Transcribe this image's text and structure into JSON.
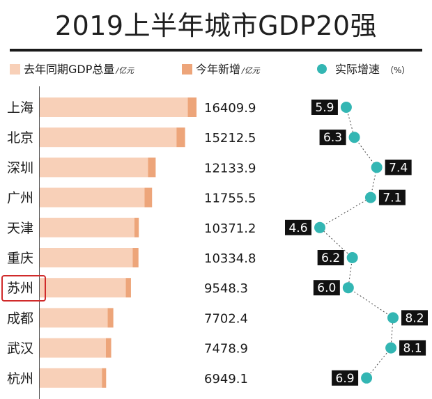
{
  "title": "2019上半年城市GDP20强",
  "legend": {
    "base": {
      "label": "去年同期GDP总量",
      "unit": "/亿元"
    },
    "increase": {
      "label": "今年新增",
      "unit": "/亿元"
    },
    "growth": {
      "label": "实际增速",
      "unit": "（%）"
    }
  },
  "colors": {
    "base": "#f8d0b8",
    "increase": "#eda57a",
    "growth_dot": "#33b6b3",
    "rate_box": "#111111",
    "highlight": "#d02a2a"
  },
  "highlighted_city": "苏州",
  "chart_data": {
    "type": "bar",
    "categories": [
      "上海",
      "北京",
      "深圳",
      "广州",
      "天津",
      "重庆",
      "苏州",
      "成都",
      "武汉",
      "杭州"
    ],
    "series": [
      {
        "name": "去年同期GDP总量",
        "values": [
          15498,
          14313,
          11336,
          10971,
          9915,
          9733,
          9008,
          7112,
          6920,
          6508
        ]
      },
      {
        "name": "今年新增",
        "values": [
          911.9,
          899.5,
          797.9,
          784.5,
          456.2,
          601.8,
          540.3,
          590.4,
          558.9,
          441.1
        ]
      },
      {
        "name": "实际增速",
        "values": [
          5.9,
          6.3,
          7.4,
          7.1,
          4.6,
          6.2,
          6.0,
          8.2,
          8.1,
          6.9
        ]
      }
    ],
    "totals_labels": [
      "16409.9",
      "15212.5",
      "12133.9",
      "11755.5",
      "10371.2",
      "10334.8",
      "9548.3",
      "7702.4",
      "7478.9",
      "6949.1"
    ],
    "growth_labels": [
      "5.9",
      "6.3",
      "7.4",
      "7.1",
      "4.6",
      "6.2",
      "6.0",
      "8.2",
      "8.1",
      "6.9"
    ],
    "xlim": [
      0,
      17500
    ],
    "growth_range": [
      4.6,
      8.2
    ]
  }
}
